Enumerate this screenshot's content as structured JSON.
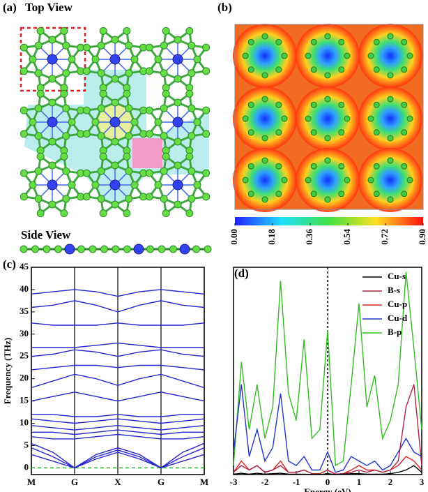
{
  "figure": {
    "panel_a": {
      "label": "(a)",
      "top_view": "Top View",
      "side_view": "Side View"
    },
    "panel_b": {
      "label": "(b)",
      "colorbar": {
        "lim": [
          0,
          0.9
        ],
        "ticks": [
          {
            "value": 0,
            "label": "0.00"
          },
          {
            "value": 0.18,
            "label": "0.18"
          },
          {
            "value": 0.36,
            "label": "0.36"
          },
          {
            "value": 0.54,
            "label": "0.54"
          },
          {
            "value": 0.72,
            "label": "0.72"
          },
          {
            "value": 0.9,
            "label": "0.90"
          }
        ]
      }
    }
  },
  "chart_data": [
    {
      "type": "line",
      "label": "(c)",
      "ylabel": "Frequency (THz)",
      "x": [
        0,
        0.5,
        1,
        1.5,
        2,
        2.5,
        3,
        3.5,
        4
      ],
      "xlim": [
        0,
        4
      ],
      "xticks": [
        {
          "value": 0,
          "label": "M"
        },
        {
          "value": 1,
          "label": "G"
        },
        {
          "value": 2,
          "label": "X"
        },
        {
          "value": 3,
          "label": "G"
        },
        {
          "value": 4,
          "label": "M"
        }
      ],
      "ylim": [
        -1.5,
        45
      ],
      "yticks": [
        0,
        5,
        10,
        15,
        20,
        25,
        30,
        35,
        40,
        45
      ],
      "reference_line": {
        "y": 0,
        "color": "#22bb22"
      },
      "series": [
        {
          "color": "#2626d0",
          "values": [
            3,
            1.5,
            0,
            2,
            3.5,
            2,
            0,
            1.5,
            3
          ]
        },
        {
          "color": "#2626d0",
          "values": [
            4.5,
            2.5,
            0,
            2.5,
            4,
            2.5,
            0,
            2.5,
            4.5
          ]
        },
        {
          "color": "#2626d0",
          "values": [
            5.5,
            3.5,
            0,
            3,
            4.5,
            3,
            0,
            3.5,
            5.5
          ]
        },
        {
          "color": "#2626d0",
          "values": [
            7,
            6.5,
            6.5,
            7,
            7.5,
            7,
            6.5,
            6.5,
            7
          ]
        },
        {
          "color": "#2626d0",
          "values": [
            8,
            8,
            7.5,
            8,
            8.5,
            8,
            7.5,
            8,
            8
          ]
        },
        {
          "color": "#2626d0",
          "values": [
            9.5,
            9,
            8.5,
            9,
            9.5,
            9,
            8.5,
            9,
            9.5
          ]
        },
        {
          "color": "#2626d0",
          "values": [
            11,
            10.5,
            10,
            10.5,
            11,
            10.5,
            10,
            10.5,
            11
          ]
        },
        {
          "color": "#2626d0",
          "values": [
            12,
            12,
            11.5,
            11.5,
            12,
            11.5,
            11.5,
            12,
            12
          ]
        },
        {
          "color": "#2626d0",
          "values": [
            15,
            16,
            17,
            16,
            15,
            16,
            17,
            16,
            15
          ]
        },
        {
          "color": "#2626d0",
          "values": [
            18,
            19.5,
            21,
            20,
            18.5,
            20,
            21,
            19.5,
            18
          ]
        },
        {
          "color": "#2626d0",
          "values": [
            22,
            22.5,
            23,
            23,
            22.5,
            23,
            23,
            22.5,
            22
          ]
        },
        {
          "color": "#2626d0",
          "values": [
            25,
            25.5,
            26.5,
            26,
            25,
            26,
            26.5,
            25.5,
            25
          ]
        },
        {
          "color": "#2626d0",
          "values": [
            27,
            27,
            27,
            27.5,
            28,
            27.5,
            27,
            27,
            27
          ]
        },
        {
          "color": "#2626d0",
          "values": [
            32.5,
            32,
            32,
            32,
            32.5,
            32,
            32,
            32,
            32.5
          ]
        },
        {
          "color": "#2626d0",
          "values": [
            36,
            36.5,
            37.5,
            36.5,
            35,
            36.5,
            37.5,
            36.5,
            36
          ]
        },
        {
          "color": "#2626d0",
          "values": [
            39,
            39.5,
            40,
            39.5,
            38.5,
            39.5,
            40,
            39.5,
            39
          ]
        }
      ]
    },
    {
      "type": "line",
      "label": "(d)",
      "xlabel": "Energy (eV)",
      "x": [
        -3,
        -2.75,
        -2.5,
        -2.25,
        -2,
        -1.75,
        -1.5,
        -1.25,
        -1,
        -0.75,
        -0.5,
        -0.25,
        0,
        0.25,
        0.5,
        0.75,
        1,
        1.25,
        1.5,
        1.75,
        2,
        2.25,
        2.5,
        2.75,
        3
      ],
      "xlim": [
        -3,
        3
      ],
      "xticks": [
        -3,
        -2,
        -1,
        0,
        1,
        2,
        3
      ],
      "ylim": [
        0,
        46
      ],
      "reference_line": {
        "x": 0,
        "color": "#000000"
      },
      "legend": "upper right",
      "series": [
        {
          "name": "B-p",
          "color": "#33bb22",
          "values": [
            2,
            25,
            10,
            20,
            8,
            15,
            43,
            18,
            12,
            30,
            8,
            10,
            32,
            2,
            3,
            20,
            38,
            15,
            22,
            8,
            12,
            20,
            45,
            28,
            10
          ]
        },
        {
          "name": "Cu-d",
          "color": "#2233cc",
          "values": [
            5,
            20,
            4,
            10,
            3,
            6,
            18,
            3,
            2,
            4,
            1,
            1,
            5,
            0.5,
            1,
            4,
            3,
            2,
            3,
            1,
            2,
            5,
            8,
            5,
            4
          ]
        },
        {
          "name": "Cu-p",
          "color": "#dd2222",
          "values": [
            0.5,
            3,
            1,
            2,
            0.5,
            1,
            3,
            0.5,
            0.5,
            1,
            0.2,
            0.2,
            1,
            0.1,
            0.2,
            1,
            2,
            1,
            1,
            0.5,
            1,
            2,
            4,
            3,
            1
          ]
        },
        {
          "name": "B-s",
          "color": "#aa2244",
          "values": [
            0.5,
            2,
            1,
            2,
            0.5,
            1,
            2,
            0.5,
            0.5,
            1,
            0.2,
            0.2,
            1,
            0.1,
            0.2,
            0.5,
            1,
            0.5,
            1,
            0.5,
            1,
            3,
            15,
            20,
            2
          ]
        },
        {
          "name": "Cu-s",
          "color": "#000000",
          "values": [
            0.1,
            0.3,
            0.1,
            0.3,
            0.1,
            0.2,
            0.3,
            0.1,
            0.1,
            0.1,
            0,
            0,
            0.2,
            0,
            0.1,
            0.2,
            0.2,
            0.1,
            0.1,
            0.1,
            0.2,
            0.5,
            1,
            2,
            0.5
          ]
        }
      ]
    }
  ]
}
